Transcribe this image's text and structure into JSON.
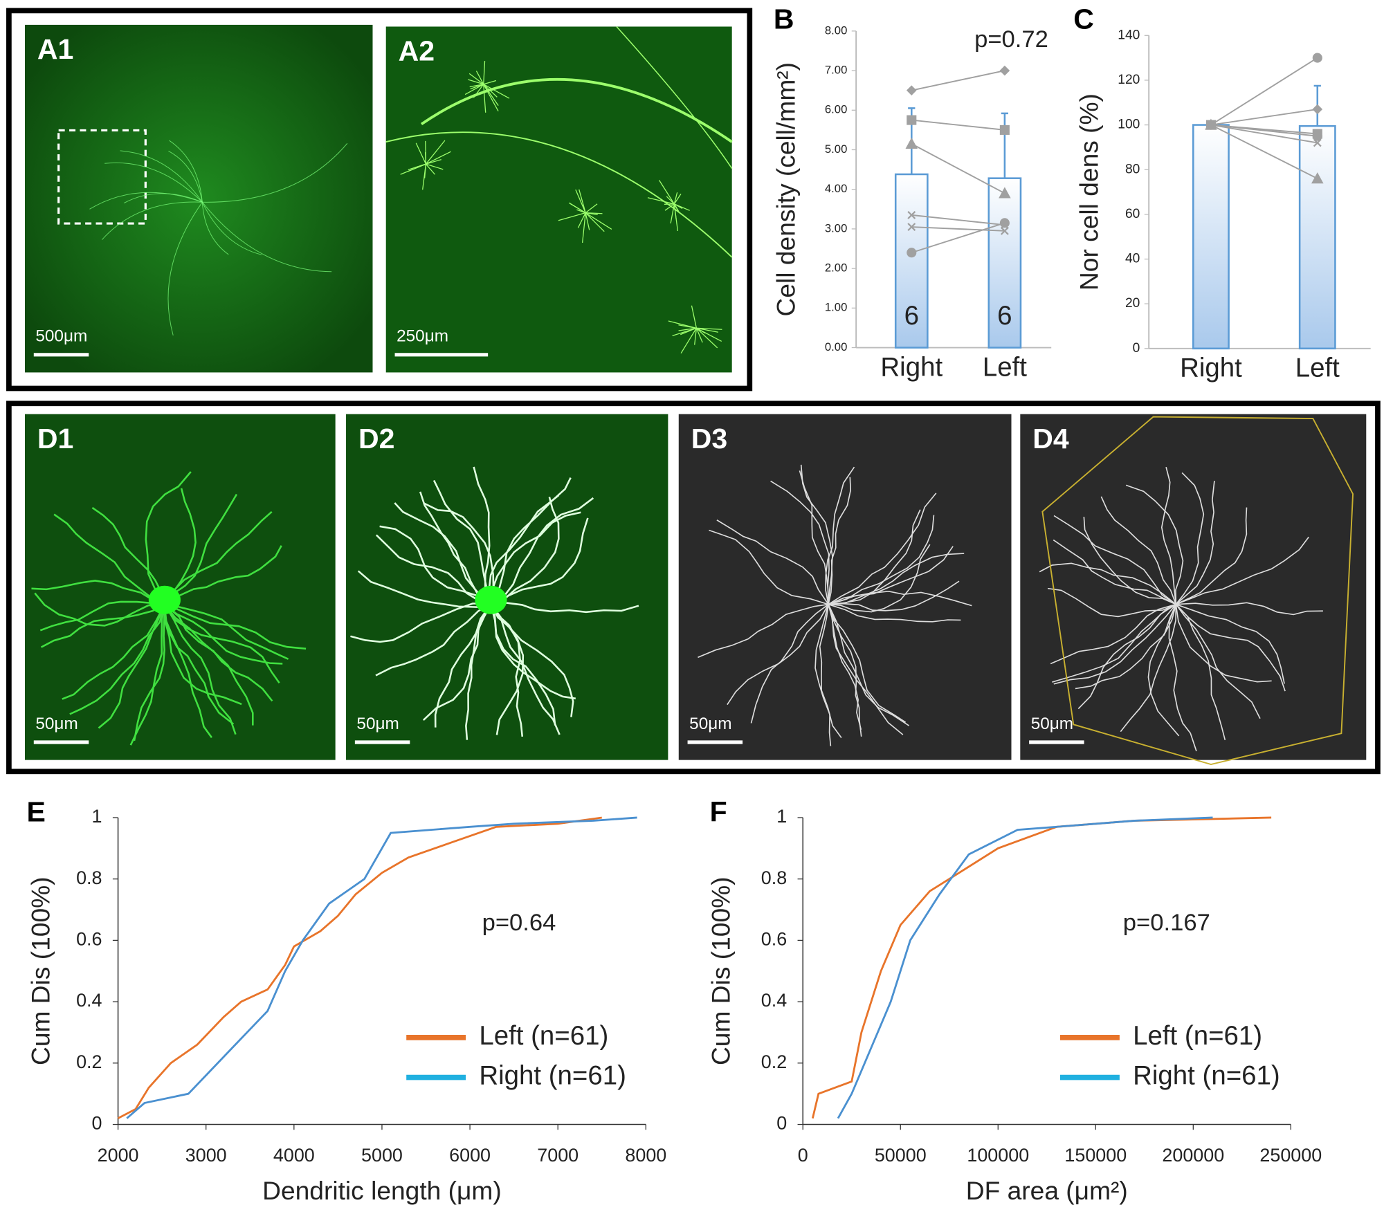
{
  "images": [
    {
      "label": "A1",
      "scale_bar": "500μm"
    },
    {
      "label": "A2",
      "scale_bar": "250μm"
    },
    {
      "label": "D1",
      "scale_bar": "50μm"
    },
    {
      "label": "D2",
      "scale_bar": "50μm"
    },
    {
      "label": "D3",
      "scale_bar": "50μm"
    },
    {
      "label": "D4",
      "scale_bar": "50μm"
    }
  ],
  "chart_data": [
    {
      "type": "bar",
      "panel_label": "B",
      "y_label": "Cell density (cell/mm²)",
      "annotation": "p=0.72",
      "categories": [
        "Right",
        "Left"
      ],
      "values": [
        4.38,
        4.28
      ],
      "errors": [
        1.67,
        1.64
      ],
      "n_labels": [
        "6",
        "6"
      ],
      "color": "#5b9bd5",
      "pairs": [
        {
          "marker": "diamond",
          "values": [
            6.5,
            7.0
          ]
        },
        {
          "marker": "square",
          "values": [
            5.75,
            5.5
          ]
        },
        {
          "marker": "triangle",
          "values": [
            5.15,
            3.9
          ]
        },
        {
          "marker": "x",
          "values": [
            3.35,
            3.1
          ]
        },
        {
          "marker": "x",
          "values": [
            3.05,
            2.95
          ]
        },
        {
          "marker": "circle",
          "values": [
            2.4,
            3.15
          ]
        }
      ],
      "pair_color": "#a0a0a0",
      "ylim": [
        0,
        8
      ],
      "yticks": [
        {
          "value": 0,
          "label": "0.00"
        },
        {
          "value": 1,
          "label": "1.00"
        },
        {
          "value": 2,
          "label": "2.00"
        },
        {
          "value": 3,
          "label": "3.00"
        },
        {
          "value": 4,
          "label": "4.00"
        },
        {
          "value": 5,
          "label": "5.00"
        },
        {
          "value": 6,
          "label": "6.00"
        },
        {
          "value": 7,
          "label": "7.00"
        },
        {
          "value": 8,
          "label": "8.00"
        }
      ]
    },
    {
      "type": "bar",
      "panel_label": "C",
      "y_label": "Nor cell dens (%)",
      "categories": [
        "Right",
        "Left"
      ],
      "values": [
        100,
        99.5
      ],
      "errors": [
        1,
        18
      ],
      "color": "#5b9bd5",
      "pairs": [
        {
          "marker": "circle",
          "values": [
            100,
            130
          ]
        },
        {
          "marker": "diamond",
          "values": [
            100,
            107
          ]
        },
        {
          "marker": "square",
          "values": [
            100,
            96
          ]
        },
        {
          "marker": "circle",
          "values": [
            100,
            95
          ]
        },
        {
          "marker": "x",
          "values": [
            100,
            92
          ]
        },
        {
          "marker": "triangle",
          "values": [
            100,
            76
          ]
        }
      ],
      "pair_color": "#a0a0a0",
      "ylim": [
        0,
        140
      ],
      "yticks": [
        0,
        20,
        40,
        60,
        80,
        100,
        120,
        140
      ]
    },
    {
      "type": "line",
      "panel_label": "E",
      "x_label": "Dendritic length (μm)",
      "y_label": "Cum Dis (100%)",
      "annotation": "p=0.64",
      "series": [
        {
          "name": "Left (n=61)",
          "color": "#e8742a",
          "x": [
            2000,
            2200,
            2350,
            2600,
            2900,
            3200,
            3400,
            3700,
            3900,
            4000,
            4300,
            4500,
            4700,
            5000,
            5300,
            5800,
            6300,
            7000,
            7500
          ],
          "values": [
            0.02,
            0.05,
            0.12,
            0.2,
            0.26,
            0.35,
            0.4,
            0.44,
            0.52,
            0.58,
            0.63,
            0.68,
            0.75,
            0.82,
            0.87,
            0.92,
            0.97,
            0.98,
            1.0
          ]
        },
        {
          "name": "Right (n=61)",
          "color": "#4a90d0",
          "x": [
            2100,
            2300,
            2800,
            3000,
            3300,
            3700,
            3900,
            4100,
            4400,
            4800,
            5100,
            6000,
            6500,
            7400,
            7900
          ],
          "values": [
            0.02,
            0.07,
            0.1,
            0.16,
            0.25,
            0.37,
            0.5,
            0.6,
            0.72,
            0.8,
            0.95,
            0.97,
            0.98,
            0.99,
            1.0
          ]
        }
      ],
      "legend_colors": [
        "#e8742a",
        "#20b0e0"
      ],
      "xlim": [
        2000,
        8000
      ],
      "xticks": [
        2000,
        3000,
        4000,
        5000,
        6000,
        7000,
        8000
      ],
      "ylim": [
        0,
        1
      ],
      "yticks": [
        0,
        0.2,
        0.4,
        0.6,
        0.8,
        1
      ]
    },
    {
      "type": "line",
      "panel_label": "F",
      "x_label": "DF area (μm²)",
      "y_label": "Cum Dis (100%)",
      "annotation": "p=0.167",
      "series": [
        {
          "name": "Left (n=61)",
          "color": "#e8742a",
          "x": [
            5000,
            8000,
            25000,
            30000,
            40000,
            50000,
            65000,
            80000,
            100000,
            130000,
            170000,
            240000
          ],
          "values": [
            0.02,
            0.1,
            0.14,
            0.3,
            0.5,
            0.65,
            0.76,
            0.82,
            0.9,
            0.97,
            0.99,
            1.0
          ]
        },
        {
          "name": "Right (n=61)",
          "color": "#4a90d0",
          "x": [
            18000,
            25000,
            35000,
            45000,
            55000,
            70000,
            85000,
            110000,
            170000,
            210000
          ],
          "values": [
            0.02,
            0.1,
            0.25,
            0.4,
            0.6,
            0.75,
            0.88,
            0.96,
            0.99,
            1.0
          ]
        }
      ],
      "legend_colors": [
        "#e8742a",
        "#20b0e0"
      ],
      "xlim": [
        0,
        250000
      ],
      "xticks": [
        0,
        50000,
        100000,
        150000,
        200000,
        250000
      ],
      "ylim": [
        0,
        1
      ],
      "yticks": [
        0,
        0.2,
        0.4,
        0.6,
        0.8,
        1
      ]
    }
  ]
}
